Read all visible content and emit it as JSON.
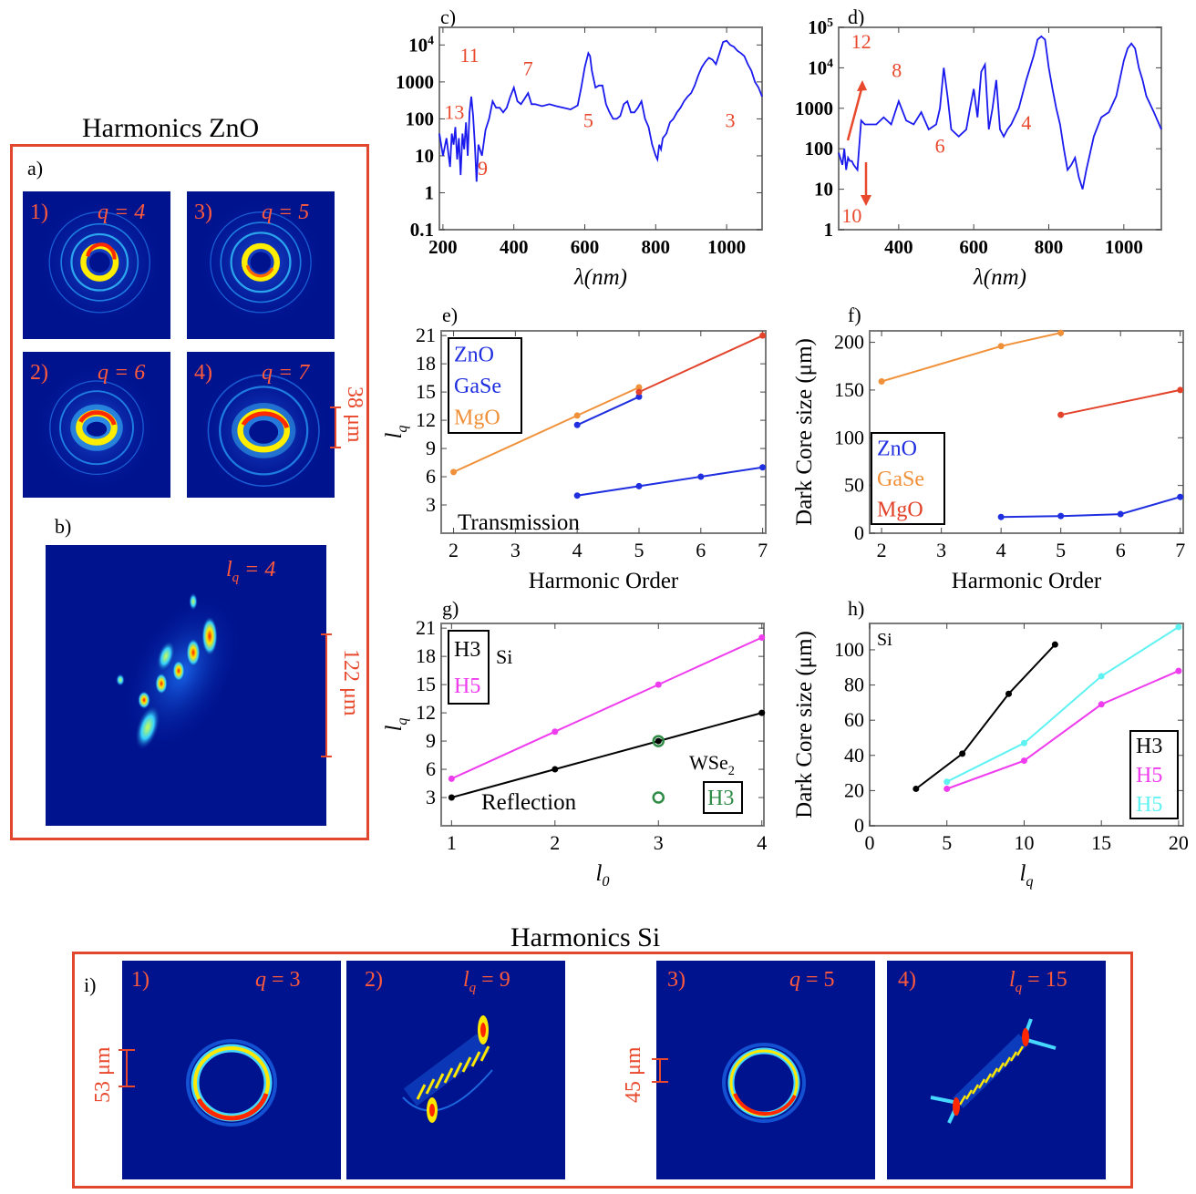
{
  "titles": {
    "zno": "Harmonics ZnO",
    "si": "Harmonics Si"
  },
  "panel_labels": {
    "a": "a)",
    "b": "b)",
    "c": "c)",
    "d": "d)",
    "e": "e)",
    "f": "f)",
    "g": "g)",
    "h": "h)",
    "i": "i)"
  },
  "zno_beams": [
    {
      "idx": "1)",
      "q": "q = 4"
    },
    {
      "idx": "3)",
      "q": "q = 5"
    },
    {
      "idx": "2)",
      "q": "q = 6"
    },
    {
      "idx": "4)",
      "q": "q = 7"
    }
  ],
  "zno_scale": "38 μm",
  "zno_b": {
    "label": "l_q = 4",
    "label_main": "l",
    "label_sub": "q",
    "label_rest": " = 4",
    "scale": "122 μm"
  },
  "si_beams": [
    {
      "idx": "1)",
      "main": "q",
      "sub": "",
      "rest": " = 3"
    },
    {
      "idx": "2)",
      "main": "l",
      "sub": "q",
      "rest": " = 9"
    },
    {
      "idx": "3)",
      "main": "q",
      "sub": "",
      "rest": " = 5"
    },
    {
      "idx": "4)",
      "main": "l",
      "sub": "q",
      "rest": " = 15"
    }
  ],
  "si_scales": [
    "53 μm",
    "45 μm"
  ],
  "colors": {
    "blue_spectrum": "#1a1aee",
    "zno": "#1f2fe0",
    "gase": "#f0913a",
    "mgo": "#e2432a",
    "h3": "#000000",
    "h5_magenta": "#ee3cee",
    "h5_cyan": "#5ff2f2",
    "wse2": "#2e8b45",
    "frame": "#e2472d",
    "beam_bg": "#00138f"
  },
  "chart_data": [
    {
      "id": "c",
      "type": "line",
      "scale_y": "log",
      "xlabel": "λ(nm)",
      "ylabel": "",
      "xlim": [
        190,
        1100
      ],
      "ylim": [
        0.1,
        30000
      ],
      "xticks": [
        200,
        400,
        600,
        800,
        1000
      ],
      "yticks": [
        {
          "v": 0.1,
          "t": "0.1"
        },
        {
          "v": 1,
          "t": "1"
        },
        {
          "v": 10,
          "t": "10"
        },
        {
          "v": 100,
          "t": "100"
        },
        {
          "v": 1000,
          "t": "1000"
        },
        {
          "v": 10000,
          "t": "10^4"
        }
      ],
      "series": [
        {
          "x": [
            190,
            200,
            210,
            220,
            225,
            230,
            235,
            240,
            245,
            250,
            255,
            260,
            265,
            270,
            275,
            280,
            285,
            290,
            295,
            300,
            310,
            320,
            330,
            340,
            350,
            360,
            370,
            380,
            390,
            400,
            410,
            420,
            430,
            440,
            450,
            460,
            480,
            500,
            520,
            540,
            560,
            580,
            590,
            600,
            610,
            615,
            620,
            630,
            640,
            650,
            660,
            670,
            680,
            690,
            700,
            710,
            720,
            730,
            740,
            750,
            760,
            770,
            780,
            790,
            800,
            805,
            810,
            815,
            820,
            830,
            840,
            850,
            860,
            870,
            880,
            890,
            900,
            910,
            920,
            930,
            940,
            950,
            960,
            970,
            980,
            990,
            1000,
            1010,
            1020,
            1030,
            1040,
            1050,
            1060,
            1070,
            1080,
            1090,
            1100
          ],
          "y": [
            40,
            10,
            30,
            5,
            40,
            20,
            60,
            8,
            30,
            3,
            40,
            15,
            80,
            10,
            150,
            400,
            120,
            20,
            2,
            20,
            10,
            50,
            100,
            300,
            200,
            200,
            150,
            200,
            400,
            700,
            300,
            250,
            350,
            500,
            250,
            250,
            220,
            250,
            220,
            200,
            180,
            230,
            700,
            2500,
            6000,
            5000,
            2000,
            700,
            800,
            800,
            250,
            150,
            100,
            100,
            120,
            250,
            300,
            150,
            150,
            200,
            300,
            100,
            60,
            20,
            10,
            8,
            20,
            15,
            30,
            40,
            80,
            100,
            150,
            200,
            300,
            400,
            500,
            800,
            1500,
            2500,
            3500,
            4500,
            4000,
            3000,
            6000,
            12000,
            13000,
            10000,
            9000,
            7000,
            6000,
            5000,
            3000,
            2000,
            1000,
            700,
            400
          ]
        }
      ],
      "annotations": [
        {
          "t": "13",
          "x": 232,
          "v": 100
        },
        {
          "t": "11",
          "x": 275,
          "v": 3500
        },
        {
          "t": "7",
          "x": 440,
          "v": 1500
        },
        {
          "t": "9",
          "x": 312,
          "v": 3
        },
        {
          "t": "5",
          "x": 610,
          "v": 60
        },
        {
          "t": "3",
          "x": 1010,
          "v": 60
        }
      ]
    },
    {
      "id": "d",
      "type": "line",
      "scale_y": "log",
      "xlabel": "λ(nm)",
      "ylabel": "",
      "xlim": [
        240,
        1100
      ],
      "ylim": [
        1,
        100000
      ],
      "xticks": [
        400,
        600,
        800,
        1000
      ],
      "yticks": [
        {
          "v": 1,
          "t": "1"
        },
        {
          "v": 10,
          "t": "10"
        },
        {
          "v": 100,
          "t": "100"
        },
        {
          "v": 1000,
          "t": "1000"
        },
        {
          "v": 10000,
          "t": "10^4"
        },
        {
          "v": 100000,
          "t": "10^5"
        }
      ],
      "series": [
        {
          "x": [
            240,
            250,
            255,
            260,
            265,
            270,
            275,
            280,
            290,
            300,
            310,
            320,
            340,
            360,
            380,
            400,
            420,
            440,
            460,
            480,
            500,
            510,
            520,
            530,
            540,
            560,
            580,
            590,
            600,
            610,
            620,
            630,
            640,
            650,
            660,
            670,
            680,
            690,
            700,
            720,
            740,
            760,
            770,
            780,
            790,
            800,
            810,
            820,
            830,
            840,
            850,
            860,
            870,
            880,
            890,
            900,
            920,
            940,
            960,
            980,
            1000,
            1010,
            1020,
            1030,
            1040,
            1050,
            1060,
            1080,
            1100
          ],
          "y": [
            80,
            40,
            100,
            30,
            60,
            50,
            50,
            40,
            30,
            500,
            400,
            400,
            400,
            600,
            400,
            1500,
            500,
            400,
            800,
            300,
            400,
            1000,
            10000,
            2000,
            300,
            200,
            300,
            1000,
            3000,
            600,
            8000,
            12000,
            300,
            1000,
            5000,
            300,
            200,
            300,
            400,
            1000,
            5000,
            20000,
            50000,
            60000,
            50000,
            10000,
            3000,
            1000,
            400,
            100,
            30,
            40,
            60,
            20,
            10,
            30,
            200,
            600,
            800,
            2000,
            15000,
            30000,
            40000,
            30000,
            10000,
            5000,
            2000,
            800,
            300
          ]
        }
      ],
      "annotations": [
        {
          "t": "12",
          "x": 300,
          "v": 30000
        },
        {
          "t": "8",
          "x": 395,
          "v": 6000
        },
        {
          "t": "6",
          "x": 510,
          "v": 80
        },
        {
          "t": "4",
          "x": 740,
          "v": 300
        },
        {
          "t": "10",
          "x": 275,
          "v": 1.5
        }
      ]
    },
    {
      "id": "e",
      "type": "line",
      "xlabel": "Harmonic Order",
      "ylabel": "l_q",
      "xlim": [
        1.8,
        7.05
      ],
      "ylim": [
        0,
        21.5
      ],
      "xticks": [
        2,
        3,
        4,
        5,
        6,
        7
      ],
      "yticks": [
        3,
        6,
        9,
        12,
        15,
        18,
        21
      ],
      "series": [
        {
          "name": "ZnO",
          "color": "#1f2fe0",
          "x": [
            4,
            5,
            6,
            7
          ],
          "y": [
            4,
            5,
            6,
            7
          ]
        },
        {
          "name": "ZnO",
          "color": "#1f2fe0",
          "x": [
            4,
            5
          ],
          "y": [
            11.5,
            14.5
          ]
        },
        {
          "name": "GaSe",
          "color": "#f0913a",
          "x": [
            2,
            4,
            5
          ],
          "y": [
            6.5,
            12.5,
            15.5
          ]
        },
        {
          "name": "MgO",
          "color": "#e2432a",
          "x": [
            5,
            7
          ],
          "y": [
            15,
            21
          ]
        }
      ],
      "legend": [
        "ZnO",
        "GaSe",
        "MgO"
      ],
      "note": "Transmission"
    },
    {
      "id": "f",
      "type": "line",
      "xlabel": "Harmonic Order",
      "ylabel": "Dark Core size (μm)",
      "xlim": [
        1.8,
        7.05
      ],
      "ylim": [
        0,
        212
      ],
      "xticks": [
        2,
        3,
        4,
        5,
        6,
        7
      ],
      "yticks": [
        0,
        50,
        100,
        150,
        200
      ],
      "series": [
        {
          "name": "ZnO",
          "color": "#1f2fe0",
          "x": [
            4,
            5,
            6,
            7
          ],
          "y": [
            17,
            18,
            20,
            38
          ]
        },
        {
          "name": "GaSe",
          "color": "#f0913a",
          "x": [
            2,
            4,
            5
          ],
          "y": [
            159,
            196,
            210
          ]
        },
        {
          "name": "MgO",
          "color": "#e2432a",
          "x": [
            5,
            7
          ],
          "y": [
            124,
            150
          ]
        }
      ],
      "legend": [
        "ZnO",
        "GaSe",
        "MgO"
      ]
    },
    {
      "id": "g",
      "type": "line",
      "xlabel": "l_0",
      "ylabel": "l_q",
      "xlim": [
        0.9,
        4.02
      ],
      "ylim": [
        0,
        21.5
      ],
      "xticks": [
        1,
        2,
        3,
        4
      ],
      "yticks": [
        3,
        6,
        9,
        12,
        15,
        18,
        21
      ],
      "series": [
        {
          "name": "H3",
          "color": "#000000",
          "x": [
            1,
            2,
            3,
            4
          ],
          "y": [
            3,
            6,
            9,
            12
          ]
        },
        {
          "name": "H5",
          "color": "#ee3cee",
          "x": [
            1,
            2,
            3,
            4
          ],
          "y": [
            5,
            10,
            15,
            20
          ]
        },
        {
          "name": "WSe2 H3",
          "color": "#2e8b45",
          "x": [
            3,
            3
          ],
          "y": [
            9,
            3
          ],
          "hollow": true
        }
      ],
      "legend": [
        "H3",
        "H5"
      ],
      "legend_title": "Si",
      "note": "Reflection",
      "wse2": "WSe2",
      "wse2_box": "H3"
    },
    {
      "id": "h",
      "type": "line",
      "xlabel": "l_q",
      "ylabel": "Dark Core size (μm)",
      "xlim": [
        0,
        20.3
      ],
      "ylim": [
        0,
        115
      ],
      "xticks": [
        0,
        5,
        10,
        15,
        20
      ],
      "yticks": [
        0,
        20,
        40,
        60,
        80,
        100
      ],
      "series": [
        {
          "name": "H3",
          "color": "#000000",
          "x": [
            3,
            6,
            9,
            12
          ],
          "y": [
            21,
            41,
            75,
            103
          ]
        },
        {
          "name": "H5",
          "color": "#ee3cee",
          "x": [
            5,
            10,
            15,
            20
          ],
          "y": [
            21,
            37,
            69,
            88
          ]
        },
        {
          "name": "H5",
          "color": "#5ff2f2",
          "x": [
            5,
            10,
            15,
            20
          ],
          "y": [
            25,
            47,
            85,
            113
          ]
        }
      ],
      "legend": [
        "H3",
        "H5",
        "H5"
      ],
      "legend_title": "Si"
    }
  ]
}
